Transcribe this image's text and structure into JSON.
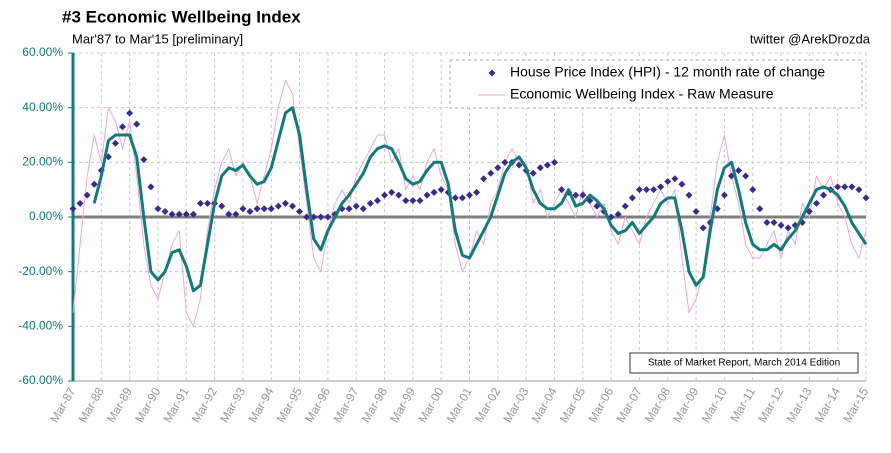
{
  "chart_data": {
    "type": "line",
    "title": "#3 Economic Wellbeing Index",
    "subtitle": "Mar'87 to Mar'15 [preliminary]",
    "source": "twitter @ArekDrozda",
    "annotation": "State of Market Report, March 2014 Edition",
    "categories": [
      "Mar-87",
      null,
      null,
      null,
      "Mar-88",
      null,
      null,
      null,
      "Mar-89",
      null,
      null,
      null,
      "Mar-90",
      null,
      null,
      null,
      "Mar-91",
      null,
      null,
      null,
      "Mar-92",
      null,
      null,
      null,
      "Mar-93",
      null,
      null,
      null,
      "Mar-94",
      null,
      null,
      null,
      "Mar-95",
      null,
      null,
      null,
      "Mar-96",
      null,
      null,
      null,
      "Mar-97",
      null,
      null,
      null,
      "Mar-98",
      null,
      null,
      null,
      "Mar-99",
      null,
      null,
      null,
      "Mar-00",
      null,
      null,
      null,
      "Mar-01",
      null,
      null,
      null,
      "Mar-02",
      null,
      null,
      null,
      "Mar-03",
      null,
      null,
      null,
      "Mar-04",
      null,
      null,
      null,
      "Mar-05",
      null,
      null,
      null,
      "Mar-06",
      null,
      null,
      null,
      "Mar-07",
      null,
      null,
      null,
      "Mar-08",
      null,
      null,
      null,
      "Mar-09",
      null,
      null,
      null,
      "Mar-10",
      null,
      null,
      null,
      "Mar-11",
      null,
      null,
      null,
      "Mar-12",
      null,
      null,
      null,
      "Mar-13",
      null,
      null,
      null,
      "Mar-14",
      null,
      null,
      null,
      "Mar-15"
    ],
    "series": [
      {
        "name": "House Price Index (HPI) - 12 month rate of change",
        "type": "scatter",
        "color": "#3b2a8c",
        "values": [
          3,
          5,
          8,
          12,
          17,
          22,
          27,
          33,
          38,
          34,
          21,
          11,
          3,
          2,
          1,
          1,
          1,
          1,
          5,
          5,
          5,
          4,
          1,
          1,
          3,
          2,
          3,
          3,
          3,
          4,
          5,
          4,
          2,
          0,
          0,
          0,
          0,
          1,
          3,
          3,
          4,
          3,
          5,
          6,
          8,
          9,
          8,
          6,
          6,
          6,
          8,
          9,
          10,
          9,
          7,
          7,
          8,
          9,
          14,
          16,
          18,
          20,
          20,
          19,
          17,
          16,
          18,
          19,
          20,
          10,
          9,
          8,
          8,
          6,
          4,
          2,
          0,
          1,
          4,
          7,
          10,
          10,
          10,
          11,
          13,
          14,
          12,
          8,
          2,
          -4,
          -2,
          3,
          8,
          15,
          17,
          15,
          10,
          3,
          -2,
          -2,
          -3,
          -4,
          -3,
          -2,
          2,
          5,
          8,
          10,
          11,
          11,
          11,
          10,
          7
        ]
      },
      {
        "name": "Economic Wellbeing Index - Raw Measure",
        "type": "line",
        "color": "#f2a6d6",
        "line_width": 1,
        "values": [
          -35,
          -10,
          15,
          30,
          20,
          40,
          35,
          25,
          35,
          15,
          -10,
          -25,
          -30,
          -20,
          -10,
          -5,
          -35,
          -40,
          -30,
          -5,
          10,
          20,
          25,
          15,
          20,
          15,
          5,
          15,
          25,
          40,
          50,
          45,
          25,
          5,
          -15,
          -20,
          -5,
          5,
          10,
          5,
          15,
          20,
          25,
          30,
          30,
          20,
          25,
          10,
          15,
          10,
          20,
          25,
          15,
          10,
          -10,
          -20,
          -15,
          -5,
          -10,
          5,
          10,
          20,
          25,
          20,
          20,
          5,
          10,
          0,
          5,
          10,
          5,
          0,
          10,
          5,
          0,
          5,
          -5,
          -10,
          0,
          -5,
          -10,
          0,
          5,
          10,
          5,
          10,
          -15,
          -35,
          -30,
          -20,
          0,
          20,
          30,
          15,
          5,
          -10,
          -15,
          -15,
          -10,
          -5,
          -15,
          -5,
          -10,
          5,
          0,
          15,
          10,
          15,
          5,
          0,
          -10,
          -15,
          -5
        ]
      },
      {
        "type": "line",
        "color": "#117a7a",
        "line_width": 3,
        "values": [
          null,
          null,
          null,
          5,
          15,
          28,
          30,
          30,
          30,
          22,
          0,
          -20,
          -23,
          -20,
          -13,
          -12,
          -18,
          -27,
          -25,
          -10,
          5,
          15,
          18,
          17,
          19,
          15,
          12,
          13,
          18,
          28,
          38,
          40,
          30,
          10,
          -8,
          -12,
          -5,
          0,
          5,
          8,
          12,
          16,
          22,
          25,
          26,
          25,
          20,
          14,
          12,
          13,
          17,
          20,
          20,
          12,
          -5,
          -14,
          -15,
          -10,
          -5,
          0,
          8,
          16,
          20,
          22,
          18,
          10,
          5,
          3,
          3,
          5,
          10,
          4,
          5,
          8,
          6,
          3,
          -3,
          -6,
          -5,
          -2,
          -6,
          -3,
          0,
          5,
          7,
          7,
          -5,
          -20,
          -25,
          -22,
          -5,
          10,
          18,
          20,
          10,
          -2,
          -10,
          -12,
          -12,
          -10,
          -12,
          -8,
          -5,
          0,
          5,
          10,
          11,
          10,
          8,
          4,
          -2,
          -6,
          -10
        ]
      }
    ],
    "ylim": [
      -60,
      60
    ],
    "yticks": [
      {
        "value": -60,
        "label": "-60.00%"
      },
      {
        "value": -40,
        "label": "-40.00%"
      },
      {
        "value": -20,
        "label": "-20.00%"
      },
      {
        "value": 0,
        "label": "0.00%"
      },
      {
        "value": 20,
        "label": "20.00%"
      },
      {
        "value": 40,
        "label": "40.00%"
      },
      {
        "value": 60,
        "label": "60.00%"
      }
    ],
    "grid": true,
    "legend": "upper right"
  }
}
